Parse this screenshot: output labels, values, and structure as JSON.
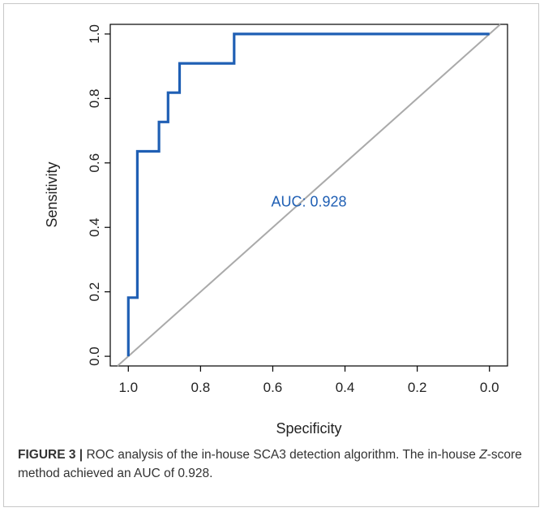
{
  "chart_data": {
    "type": "line",
    "title": "",
    "xlabel": "Specificity",
    "ylabel": "Sensitivity",
    "x_reversed": true,
    "xlim": [
      1.05,
      -0.05
    ],
    "ylim": [
      -0.03,
      1.03
    ],
    "xticks": [
      1.0,
      0.8,
      0.6,
      0.4,
      0.2,
      0.0
    ],
    "xtick_labels": [
      "1.0",
      "0.8",
      "0.6",
      "0.4",
      "0.2",
      "0.0"
    ],
    "yticks": [
      0.0,
      0.2,
      0.4,
      0.6,
      0.8,
      1.0
    ],
    "ytick_labels": [
      "0.0",
      "0.2",
      "0.4",
      "0.6",
      "0.8",
      "1.0"
    ],
    "grid": false,
    "series": [
      {
        "color": "#1f5fb4",
        "x": [
          1.0,
          1.0,
          0.975,
          0.975,
          0.915,
          0.915,
          0.89,
          0.89,
          0.858,
          0.858,
          0.707,
          0.707,
          0.0
        ],
        "y": [
          0.0,
          0.182,
          0.182,
          0.636,
          0.636,
          0.727,
          0.727,
          0.818,
          0.818,
          0.909,
          0.909,
          1.0,
          1.0
        ]
      }
    ],
    "reference_line": {
      "x": [
        1.0,
        0.0
      ],
      "y": [
        0.0,
        1.0
      ],
      "color": "#aaaaaa"
    },
    "annotation": {
      "text": "AUC: 0.928",
      "x": 0.5,
      "y": 0.48,
      "color": "#1f5fb4"
    }
  },
  "caption": {
    "label": "FIGURE 3 |",
    "text_1": " ROC analysis of the in-house SCA3 detection algorithm. The in-house ",
    "italic": "Z",
    "text_2": "-score method achieved an AUC of 0.928."
  }
}
